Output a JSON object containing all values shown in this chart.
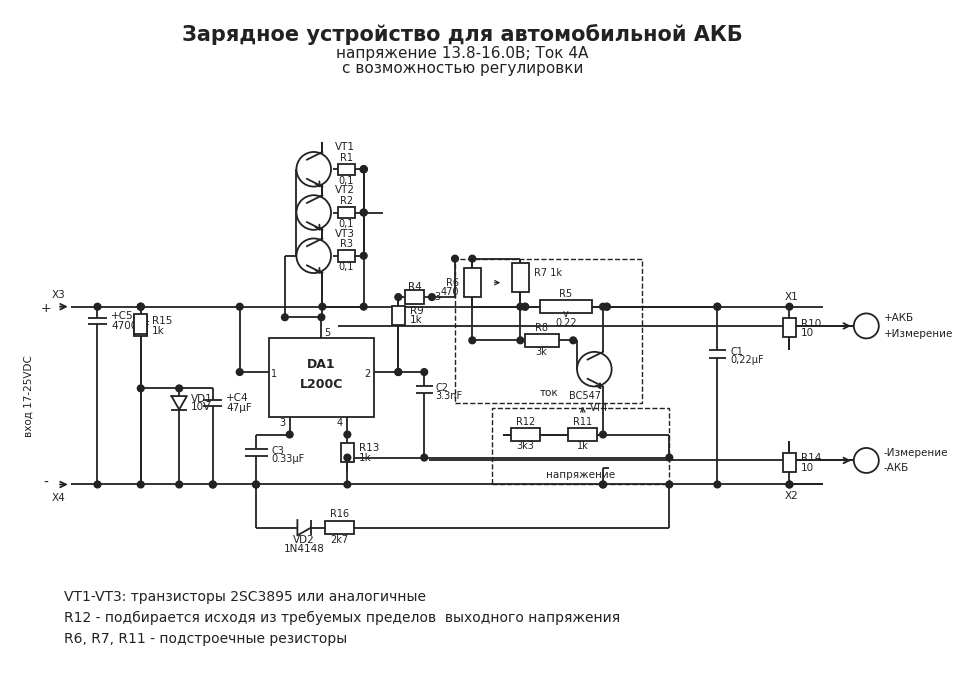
{
  "title_line1": "Зарядное устройство для автомобильной АКБ",
  "title_line2": "напряжение 13.8-16.0В; Ток 4А",
  "title_line3": "с возможностью регулировки",
  "note1": "VT1-VT3: транзисторы 2SC3895 или аналогичные",
  "note2": "R12 - подбирается исходя из требуемых пределов  выходного напряжения",
  "note3": "R6, R7, R11 - подстроечные резисторы",
  "bg_color": "#ffffff",
  "line_color": "#222222"
}
